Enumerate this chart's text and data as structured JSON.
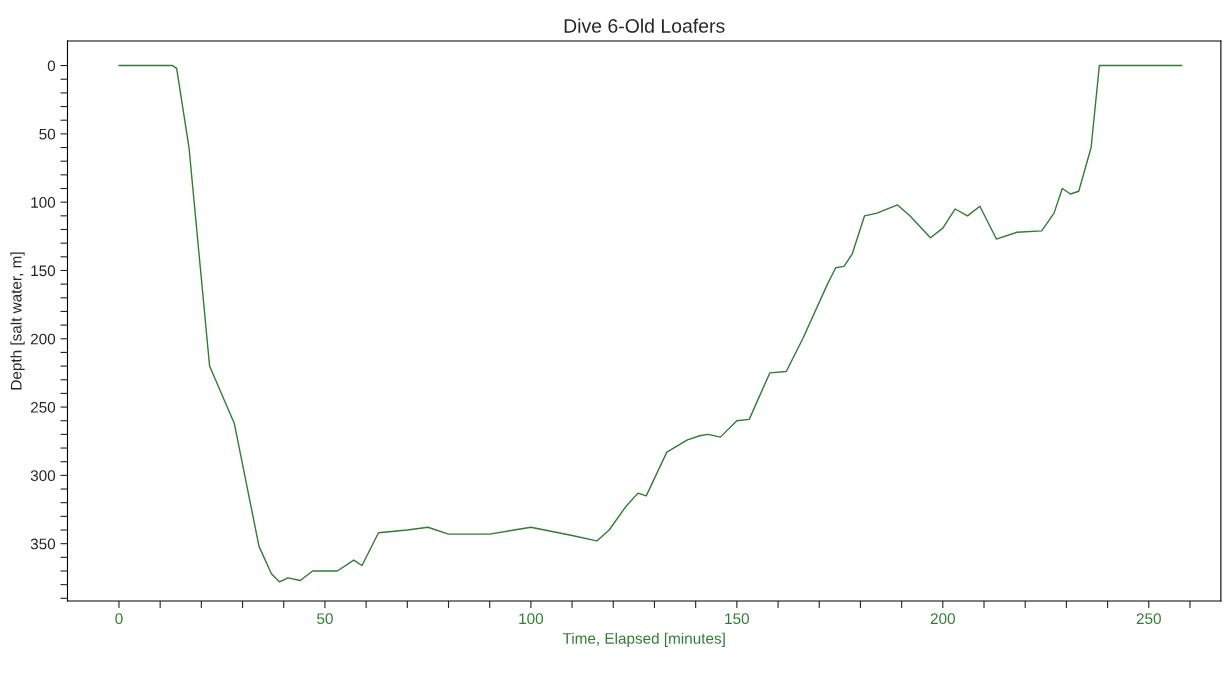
{
  "chart_data": {
    "type": "line",
    "title": "Dive 6-Old Loafers",
    "xlabel": "Time, Elapsed [minutes]",
    "ylabel": "Depth [salt water, m]",
    "x": [
      0,
      13,
      14,
      17,
      22,
      28,
      34,
      37,
      39,
      41,
      44,
      47,
      53,
      57,
      59,
      63,
      70,
      75,
      80,
      90,
      100,
      110,
      116,
      119,
      123,
      126,
      128,
      133,
      138,
      141,
      143,
      146,
      150,
      153,
      158,
      162,
      166,
      172,
      174,
      176,
      178,
      181,
      184,
      189,
      192,
      197,
      200,
      203,
      206,
      209,
      213,
      218,
      224,
      227,
      229,
      231,
      233,
      236,
      238,
      240,
      258
    ],
    "series": [
      {
        "color": "#2e7d32",
        "values": [
          0,
          0,
          2,
          60,
          220,
          262,
          352,
          372,
          378,
          375,
          377,
          370,
          370,
          362,
          366,
          342,
          340,
          338,
          343,
          343,
          338,
          344,
          348,
          340,
          323,
          313,
          315,
          283,
          274,
          271,
          270,
          272,
          260,
          259,
          225,
          224,
          200,
          160,
          148,
          147,
          138,
          110,
          108,
          102,
          110,
          126,
          119,
          105,
          110,
          103,
          127,
          122,
          121,
          108,
          90,
          94,
          92,
          60,
          0,
          0,
          0
        ]
      }
    ],
    "xlim": [
      -12.5,
      267.5
    ],
    "ylim": [
      392,
      -18
    ],
    "xticks": [
      0,
      {
        "value": 10,
        "label": null
      },
      {
        "value": 20,
        "label": null
      },
      {
        "value": 30,
        "label": null
      },
      {
        "value": 40,
        "label": null
      },
      50,
      {
        "value": 60,
        "label": null
      },
      {
        "value": 70,
        "label": null
      },
      {
        "value": 80,
        "label": null
      },
      {
        "value": 90,
        "label": null
      },
      100,
      {
        "value": 110,
        "label": null
      },
      {
        "value": 120,
        "label": null
      },
      {
        "value": 130,
        "label": null
      },
      {
        "value": 140,
        "label": null
      },
      150,
      {
        "value": 160,
        "label": null
      },
      {
        "value": 170,
        "label": null
      },
      {
        "value": 180,
        "label": null
      },
      {
        "value": 190,
        "label": null
      },
      200,
      {
        "value": 210,
        "label": null
      },
      {
        "value": 220,
        "label": null
      },
      {
        "value": 230,
        "label": null
      },
      {
        "value": 240,
        "label": null
      },
      250,
      {
        "value": 260,
        "label": null
      }
    ],
    "yticks": [
      0,
      {
        "value": 10,
        "label": null
      },
      {
        "value": 20,
        "label": null
      },
      {
        "value": 30,
        "label": null
      },
      {
        "value": 40,
        "label": null
      },
      50,
      {
        "value": 60,
        "label": null
      },
      {
        "value": 70,
        "label": null
      },
      {
        "value": 80,
        "label": null
      },
      {
        "value": 90,
        "label": null
      },
      100,
      {
        "value": 110,
        "label": null
      },
      {
        "value": 120,
        "label": null
      },
      {
        "value": 130,
        "label": null
      },
      {
        "value": 140,
        "label": null
      },
      150,
      {
        "value": 160,
        "label": null
      },
      {
        "value": 170,
        "label": null
      },
      {
        "value": 180,
        "label": null
      },
      {
        "value": 190,
        "label": null
      },
      200,
      {
        "value": 210,
        "label": null
      },
      {
        "value": 220,
        "label": null
      },
      {
        "value": 230,
        "label": null
      },
      {
        "value": 240,
        "label": null
      },
      250,
      {
        "value": 260,
        "label": null
      },
      {
        "value": 270,
        "label": null
      },
      {
        "value": 280,
        "label": null
      },
      {
        "value": 290,
        "label": null
      },
      300,
      {
        "value": 310,
        "label": null
      },
      {
        "value": 320,
        "label": null
      },
      {
        "value": 330,
        "label": null
      },
      {
        "value": 340,
        "label": null
      },
      350,
      {
        "value": 360,
        "label": null
      },
      {
        "value": 370,
        "label": null
      },
      {
        "value": 380,
        "label": null
      },
      {
        "value": 390,
        "label": null
      }
    ],
    "grid": false,
    "legend": false
  }
}
